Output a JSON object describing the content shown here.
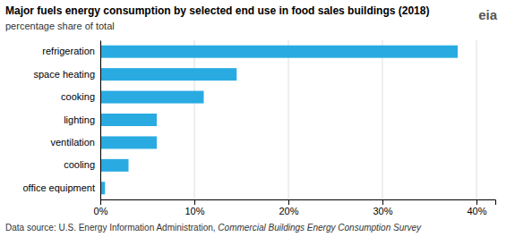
{
  "chart_data": {
    "type": "bar",
    "orientation": "horizontal",
    "title": "Major fuels energy consumption by selected end use in food sales buildings (2018)",
    "subtitle": "percentage share of total",
    "categories": [
      "office equipment",
      "cooling",
      "ventilation",
      "lighting",
      "cooking",
      "space heating",
      "refrigeration"
    ],
    "values": [
      0.5,
      3.0,
      6.0,
      6.0,
      11.0,
      14.5,
      38.0
    ],
    "color": "#29abe2",
    "xlim": [
      0,
      42
    ],
    "xticks": [
      {
        "value": 0,
        "label": "0%"
      },
      {
        "value": 10,
        "label": "10%"
      },
      {
        "value": 20,
        "label": "20%"
      },
      {
        "value": 30,
        "label": "30%"
      },
      {
        "value": 40,
        "label": "40%"
      }
    ],
    "grid": true,
    "footer": "Data source: U.S. Energy Information Administration, ",
    "footer_italic": "Commercial Buildings Energy Consumption Survey",
    "logo": "eia"
  }
}
